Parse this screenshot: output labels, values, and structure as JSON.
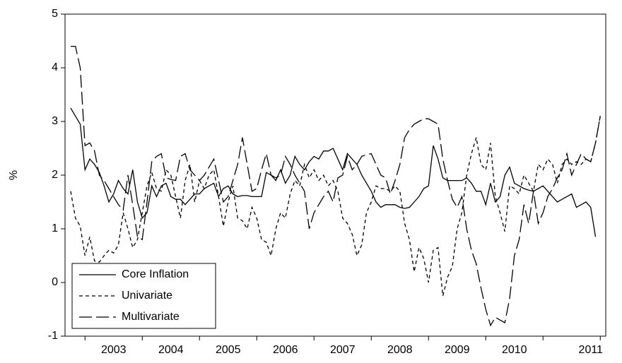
{
  "chart_data": {
    "type": "line",
    "y_label": "%",
    "categories": [
      null,
      null,
      null,
      null,
      null,
      null,
      null,
      null,
      null,
      "2003",
      null,
      null,
      null,
      null,
      null,
      null,
      null,
      null,
      null,
      null,
      null,
      "2004",
      null,
      null,
      null,
      null,
      null,
      null,
      null,
      null,
      null,
      null,
      null,
      "2005",
      null,
      null,
      null,
      null,
      null,
      null,
      null,
      null,
      null,
      null,
      null,
      "2006",
      null,
      null,
      null,
      null,
      null,
      null,
      null,
      null,
      null,
      null,
      null,
      "2007",
      null,
      null,
      null,
      null,
      null,
      null,
      null,
      null,
      null,
      null,
      null,
      "2008",
      null,
      null,
      null,
      null,
      null,
      null,
      null,
      null,
      null,
      null,
      null,
      "2009",
      null,
      null,
      null,
      null,
      null,
      null,
      null,
      null,
      null,
      null,
      null,
      "2010",
      null,
      null,
      null,
      null,
      null,
      null,
      null,
      null,
      null,
      null,
      null,
      null,
      null,
      null,
      null,
      "2011",
      null,
      null
    ],
    "ylim": [
      -1,
      5
    ],
    "yticks": [
      -1,
      0,
      1,
      2,
      3,
      4,
      5
    ],
    "grid": false,
    "legend": "lower-left",
    "series": [
      {
        "name": "Core Inflation",
        "color": "#000000",
        "dash": "none",
        "values": [
          3.25,
          3.1,
          2.95,
          2.1,
          2.3,
          2.2,
          2.05,
          1.8,
          1.5,
          1.65,
          1.9,
          1.75,
          1.65,
          2.1,
          1.5,
          1.2,
          1.3,
          1.8,
          1.6,
          1.8,
          1.85,
          1.6,
          1.55,
          1.55,
          1.45,
          1.55,
          1.65,
          1.65,
          1.75,
          1.8,
          1.85,
          1.6,
          1.75,
          1.8,
          1.65,
          1.6,
          1.62,
          1.62,
          1.6,
          1.6,
          1.6,
          2.05,
          2.0,
          1.9,
          2.1,
          1.85,
          2.0,
          2.35,
          2.2,
          2.1,
          2.25,
          2.35,
          2.3,
          2.45,
          2.45,
          2.5,
          2.3,
          2.1,
          2.4,
          2.3,
          2.2,
          2.0,
          1.85,
          1.7,
          1.5,
          1.4,
          1.45,
          1.45,
          1.45,
          1.4,
          1.38,
          1.4,
          1.5,
          1.6,
          1.75,
          1.8,
          2.55,
          2.3,
          1.95,
          1.9,
          1.9,
          1.9,
          1.9,
          1.95,
          1.85,
          1.7,
          1.7,
          1.45,
          1.85,
          1.5,
          1.6,
          2.0,
          2.15,
          1.85,
          1.8,
          1.75,
          1.72,
          1.7,
          1.75,
          1.8,
          1.7,
          1.6,
          1.5,
          1.55,
          1.6,
          1.65,
          1.4,
          1.45,
          1.5,
          1.4,
          0.85,
          null
        ]
      },
      {
        "name": "Univariate",
        "color": "#000000",
        "dash": "5,4",
        "values": [
          1.7,
          1.2,
          1.05,
          0.5,
          0.85,
          0.4,
          0.38,
          0.5,
          0.6,
          0.55,
          0.7,
          1.3,
          1.0,
          0.65,
          0.8,
          1.3,
          1.8,
          2.05,
          1.75,
          1.7,
          2.1,
          2.0,
          1.6,
          1.2,
          1.9,
          2.2,
          1.5,
          1.9,
          1.75,
          2.0,
          2.1,
          1.6,
          1.05,
          1.5,
          1.8,
          1.2,
          1.15,
          1.0,
          1.4,
          1.2,
          0.8,
          0.75,
          0.5,
          1.0,
          1.3,
          1.2,
          1.65,
          1.9,
          1.8,
          2.2,
          1.95,
          2.1,
          1.9,
          2.0,
          1.8,
          1.9,
          1.7,
          1.2,
          1.1,
          0.9,
          0.5,
          0.7,
          1.3,
          1.5,
          1.8,
          1.75,
          1.75,
          1.7,
          1.8,
          1.7,
          1.1,
          0.8,
          0.2,
          0.65,
          0.45,
          0.0,
          0.6,
          0.65,
          -0.25,
          0.1,
          0.3,
          1.0,
          1.3,
          2.0,
          2.4,
          2.7,
          2.2,
          2.1,
          2.6,
          1.6,
          1.3,
          0.95,
          1.8,
          1.75,
          1.65,
          2.0,
          1.85,
          1.7,
          2.2,
          2.1,
          2.3,
          2.2,
          1.85,
          2.2,
          2.3,
          2.2,
          2.25,
          2.2,
          2.3,
          2.25,
          2.6,
          3.1
        ]
      },
      {
        "name": "Multivariate",
        "color": "#000000",
        "dash": "18,6",
        "values": [
          4.4,
          4.4,
          4.0,
          2.55,
          2.6,
          2.45,
          2.0,
          1.9,
          1.75,
          1.6,
          1.45,
          1.35,
          2.0,
          1.45,
          0.85,
          0.8,
          1.5,
          2.25,
          2.35,
          2.4,
          1.95,
          1.92,
          1.9,
          2.35,
          2.4,
          2.1,
          2.0,
          1.9,
          2.0,
          2.15,
          2.3,
          1.9,
          1.5,
          1.6,
          1.9,
          2.2,
          2.7,
          2.2,
          1.7,
          1.75,
          2.1,
          2.4,
          2.0,
          1.95,
          2.0,
          2.35,
          2.2,
          2.0,
          1.85,
          1.7,
          1.0,
          1.3,
          1.45,
          1.6,
          1.7,
          1.5,
          1.95,
          2.0,
          2.35,
          2.1,
          2.2,
          2.35,
          2.38,
          2.4,
          2.2,
          2.0,
          1.95,
          1.65,
          1.9,
          2.2,
          2.7,
          2.85,
          2.95,
          3.0,
          3.05,
          3.05,
          3.0,
          2.95,
          2.3,
          1.9,
          1.55,
          1.4,
          1.6,
          1.0,
          0.6,
          0.35,
          -0.1,
          -0.5,
          -0.8,
          -0.65,
          -0.7,
          -0.75,
          -0.3,
          0.5,
          0.8,
          1.45,
          1.1,
          1.7,
          1.1,
          1.3,
          1.6,
          1.75,
          1.95,
          2.1,
          2.4,
          2.0,
          2.2,
          2.4,
          2.3,
          2.25,
          2.6,
          3.1
        ]
      }
    ]
  }
}
